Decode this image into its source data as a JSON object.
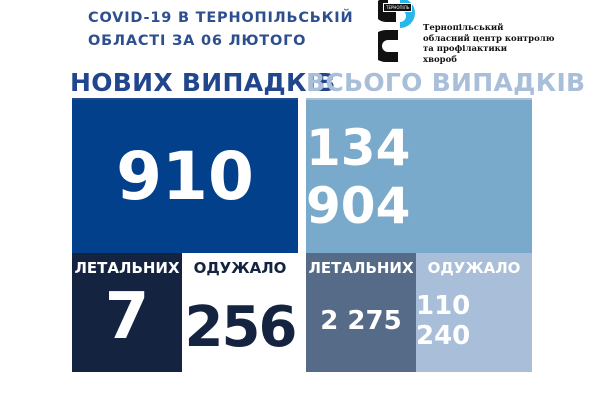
{
  "header": {
    "line1": "COVID-19 В ТЕРНОПІЛЬСЬКІЙ",
    "line2": "ОБЛАСТІ ЗА 06 ЛЮТОГО"
  },
  "logo": {
    "badge": "ТЕРНОПІЛЬ",
    "org_lines": [
      "Тернопільський",
      "обласний центр контролю",
      "та профілактики",
      "хвороб"
    ]
  },
  "new_cases": {
    "heading": "НОВИХ ВИПАДКІВ",
    "value": "910",
    "deaths_label": "ЛЕТАЛЬНИХ",
    "deaths": "7",
    "recovered_label": "ОДУЖАЛО",
    "recovered": "256"
  },
  "total_cases": {
    "heading": "ВСЬОГО ВИПАДКІВ",
    "value": "134 904",
    "deaths_label": "ЛЕТАЛЬНИХ",
    "deaths": "2 275",
    "recovered_label": "ОДУЖАЛО",
    "recovered": "110 240"
  },
  "colors": {
    "new_main": "#03408b",
    "new_deaths": "#14233f",
    "total_main": "#7aaacb",
    "total_deaths": "#566b88",
    "total_recovered": "#a9bfd9",
    "title": "#2d4f8e",
    "logo_accent": "#29b6e8"
  }
}
